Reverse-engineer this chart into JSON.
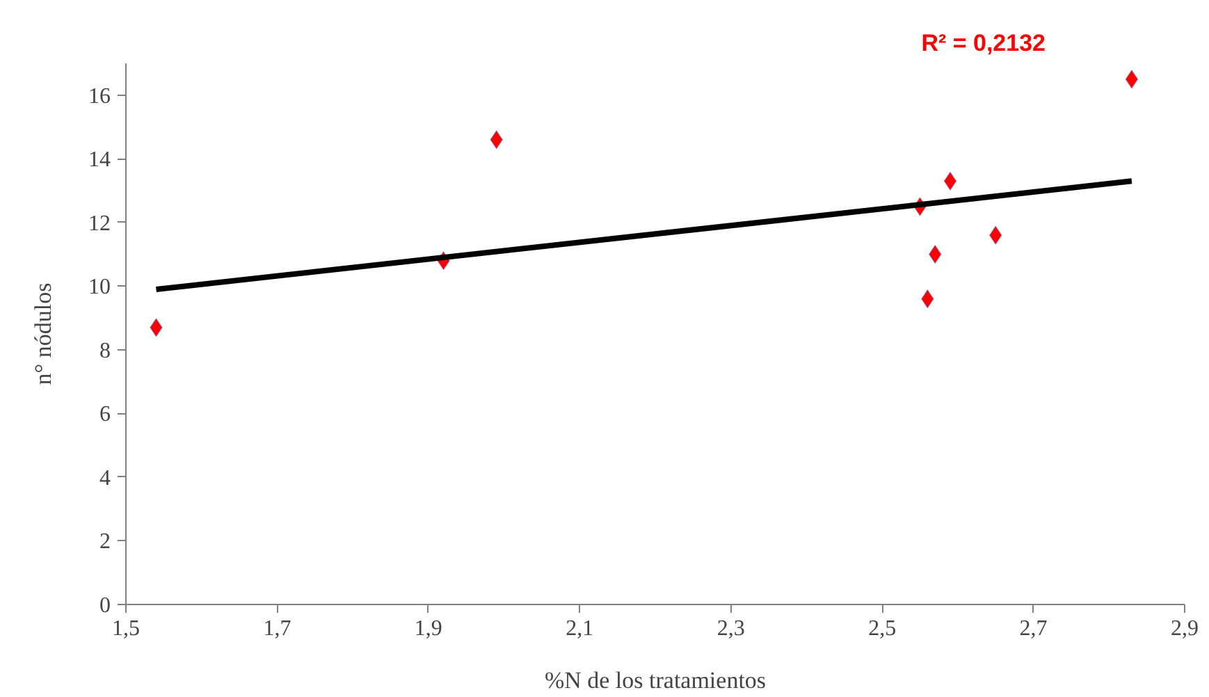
{
  "chart_data": {
    "type": "scatter",
    "xlabel": "%N de los tratamientos",
    "ylabel": "n° nódulos",
    "annotations": [
      "R² = 0,2132"
    ],
    "xlim": [
      1.5,
      2.9
    ],
    "ylim": [
      0,
      17
    ],
    "xticks": [
      {
        "value": 1.5,
        "label": "1,5"
      },
      {
        "value": 1.7,
        "label": "1,7"
      },
      {
        "value": 1.9,
        "label": "1,9"
      },
      {
        "value": 2.1,
        "label": "2,1"
      },
      {
        "value": 2.3,
        "label": "2,3"
      },
      {
        "value": 2.5,
        "label": "2,5"
      },
      {
        "value": 2.7,
        "label": "2,7"
      },
      {
        "value": 2.9,
        "label": "2,9"
      }
    ],
    "yticks": [
      0,
      2,
      4,
      6,
      8,
      10,
      12,
      14,
      16
    ],
    "grid": false,
    "series": [
      {
        "marker": "diamond",
        "color": "#ff0000",
        "x": [
          1.54,
          1.92,
          1.99,
          2.55,
          2.59,
          2.65,
          2.57,
          2.56,
          2.83
        ],
        "values": [
          8.7,
          10.8,
          14.6,
          12.5,
          13.3,
          11.6,
          11.0,
          9.6,
          16.5
        ]
      },
      {
        "type": "line",
        "color": "#000000",
        "line_style": "solid",
        "x": [
          1.54,
          2.83
        ],
        "values": [
          9.9,
          13.3
        ]
      }
    ]
  }
}
